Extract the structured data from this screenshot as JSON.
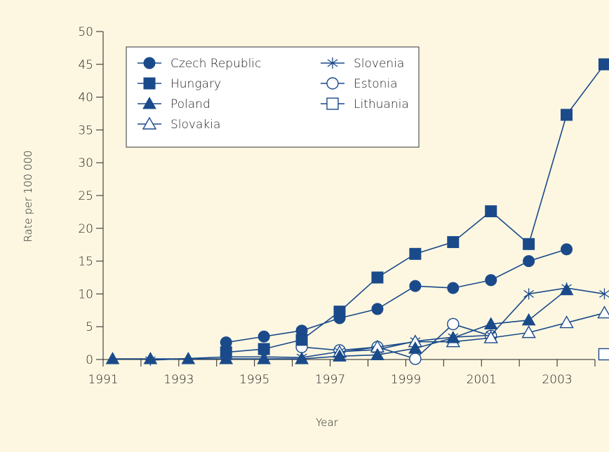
{
  "chart_data": {
    "type": "line",
    "title": "",
    "xlabel": "Year",
    "ylabel": "Rate per 100 000",
    "xlim": [
      1991,
      2004
    ],
    "ylim": [
      0,
      50
    ],
    "x_ticks": [
      1991,
      1993,
      1995,
      1997,
      1999,
      2001,
      2003
    ],
    "x_tick_labels": [
      "1991",
      "1993",
      "1995",
      "1997",
      "1999",
      "2001",
      "2003"
    ],
    "y_ticks": [
      0,
      5,
      10,
      15,
      20,
      25,
      30,
      35,
      40,
      45,
      50
    ],
    "y_tick_labels": [
      "0",
      "5",
      "10",
      "15",
      "20",
      "25",
      "30",
      "35",
      "40",
      "45",
      "50"
    ],
    "grid": false,
    "legend_position": "top-left",
    "line_color": "#1a4a8a",
    "series": [
      {
        "name": "Czech Republic",
        "marker": "circle-filled",
        "points": [
          [
            1994.25,
            2.6
          ],
          [
            1995.25,
            3.5
          ],
          [
            1996.25,
            4.4
          ],
          [
            1997.25,
            6.3
          ],
          [
            1998.25,
            7.7
          ],
          [
            1999.25,
            11.2
          ],
          [
            2000.25,
            10.9
          ],
          [
            2001.25,
            12.1
          ],
          [
            2002.25,
            15.0
          ],
          [
            2003.25,
            16.8
          ]
        ]
      },
      {
        "name": "Hungary",
        "marker": "square-filled",
        "points": [
          [
            1994.25,
            1.1
          ],
          [
            1995.25,
            1.6
          ],
          [
            1996.25,
            3.0
          ],
          [
            1997.25,
            7.3
          ],
          [
            1998.25,
            12.5
          ],
          [
            1999.25,
            16.1
          ],
          [
            2000.25,
            17.9
          ],
          [
            2001.25,
            22.6
          ],
          [
            2002.25,
            17.6
          ],
          [
            2003.25,
            37.3
          ],
          [
            2004.25,
            45.0
          ]
        ]
      },
      {
        "name": "Poland",
        "marker": "triangle-filled",
        "points": [
          [
            1991.25,
            0.1
          ],
          [
            1992.25,
            0.1
          ],
          [
            1993.25,
            0.1
          ],
          [
            1994.25,
            0.1
          ],
          [
            1995.25,
            0.1
          ],
          [
            1996.25,
            0.1
          ],
          [
            1997.25,
            0.5
          ],
          [
            1998.25,
            0.7
          ],
          [
            1999.25,
            1.7
          ],
          [
            2000.25,
            3.3
          ],
          [
            2001.25,
            5.4
          ],
          [
            2002.25,
            6.0
          ],
          [
            2003.25,
            10.6
          ]
        ]
      },
      {
        "name": "Slovakia",
        "marker": "triangle-open",
        "points": [
          [
            1997.25,
            1.1
          ],
          [
            1998.25,
            1.9
          ],
          [
            1999.25,
            2.7
          ],
          [
            2000.25,
            2.7
          ],
          [
            2001.25,
            3.3
          ],
          [
            2002.25,
            4.1
          ],
          [
            2003.25,
            5.6
          ],
          [
            2004.25,
            7.1
          ]
        ]
      },
      {
        "name": "Slovenia",
        "marker": "star",
        "points": [
          [
            1992.25,
            -0.1
          ],
          [
            1994.25,
            0.4
          ],
          [
            1995.25,
            0.4
          ],
          [
            1996.25,
            0.3
          ],
          [
            1997.25,
            1.2
          ],
          [
            1998.25,
            1.5
          ],
          [
            1999.25,
            2.8
          ],
          [
            2000.25,
            3.4
          ],
          [
            2001.25,
            3.7
          ],
          [
            2002.25,
            10.0
          ],
          [
            2003.25,
            10.9
          ],
          [
            2004.25,
            10.0
          ]
        ]
      },
      {
        "name": "Estonia",
        "marker": "circle-open",
        "points": [
          [
            1996.25,
            1.9
          ],
          [
            1997.25,
            1.4
          ],
          [
            1998.25,
            1.9
          ],
          [
            1999.25,
            0.1
          ],
          [
            2000.25,
            5.4
          ],
          [
            2001.25,
            3.6
          ]
        ]
      },
      {
        "name": "Lithuania",
        "marker": "square-open",
        "points": [
          [
            2004.25,
            0.8
          ]
        ]
      }
    ]
  }
}
